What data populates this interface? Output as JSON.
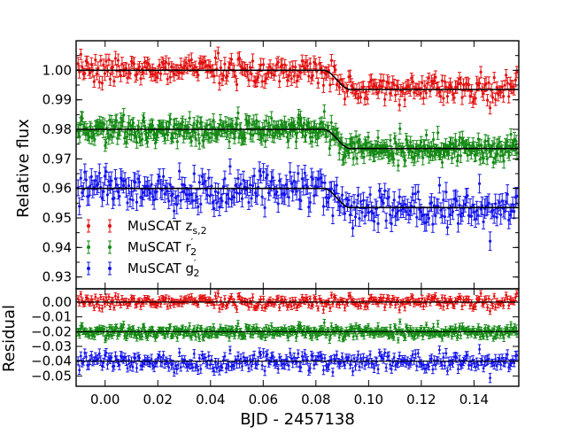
{
  "chart_data": [
    {
      "type": "scatter",
      "panel": "transit light curves",
      "ylabel": "Relative flux",
      "xlim": [
        -0.011,
        0.157
      ],
      "ylim": [
        0.926,
        1.01
      ],
      "yticks": [
        0.93,
        0.94,
        0.95,
        0.96,
        0.97,
        0.98,
        0.99,
        1.0
      ],
      "ytick_labels": [
        "0.93",
        "0.94",
        "0.95",
        "0.96",
        "0.97",
        "0.98",
        "0.99",
        "1.00"
      ],
      "legend_position": "lower-left",
      "model_transit": {
        "ingress_start": 0.083,
        "ingress_end": 0.093,
        "depth": 0.0065
      },
      "series": [
        {
          "key": "z",
          "legend_base": "MuSCAT z",
          "legend_sub": "s,2",
          "legend_prime": "",
          "color": "#e41010",
          "baseline": 1.0,
          "scatter": 0.0022,
          "n_points": 330
        },
        {
          "key": "r",
          "legend_base": "MuSCAT r",
          "legend_sub": "2",
          "legend_prime": "′",
          "color": "#158a15",
          "baseline": 0.98,
          "scatter": 0.0022,
          "n_points": 500
        },
        {
          "key": "g",
          "legend_base": "MuSCAT g",
          "legend_sub": "2",
          "legend_prime": "′",
          "color": "#1515ee",
          "baseline": 0.96,
          "scatter": 0.003,
          "n_points": 330
        }
      ]
    },
    {
      "type": "scatter",
      "panel": "residuals",
      "ylabel": "Residual",
      "xlabel": "BJD - 2457138",
      "xlim": [
        -0.011,
        0.157
      ],
      "ylim": [
        -0.057,
        0.009
      ],
      "xticks": [
        0.0,
        0.02,
        0.04,
        0.06,
        0.08,
        0.1,
        0.12,
        0.14
      ],
      "xtick_labels": [
        "0.00",
        "0.02",
        "0.04",
        "0.06",
        "0.08",
        "0.10",
        "0.12",
        "0.14"
      ],
      "yticks": [
        0.0,
        -0.01,
        -0.02,
        -0.03,
        -0.04,
        -0.05
      ],
      "ytick_labels": [
        "0.00",
        "−0.01",
        "−0.02",
        "−0.03",
        "−0.04",
        "−0.05"
      ],
      "series": [
        {
          "key": "z",
          "offset": 0.0,
          "color": "#e41010",
          "scatter": 0.0022
        },
        {
          "key": "r",
          "offset": -0.02,
          "color": "#158a15",
          "scatter": 0.0022
        },
        {
          "key": "g",
          "offset": -0.04,
          "color": "#1515ee",
          "scatter": 0.003
        }
      ]
    }
  ]
}
